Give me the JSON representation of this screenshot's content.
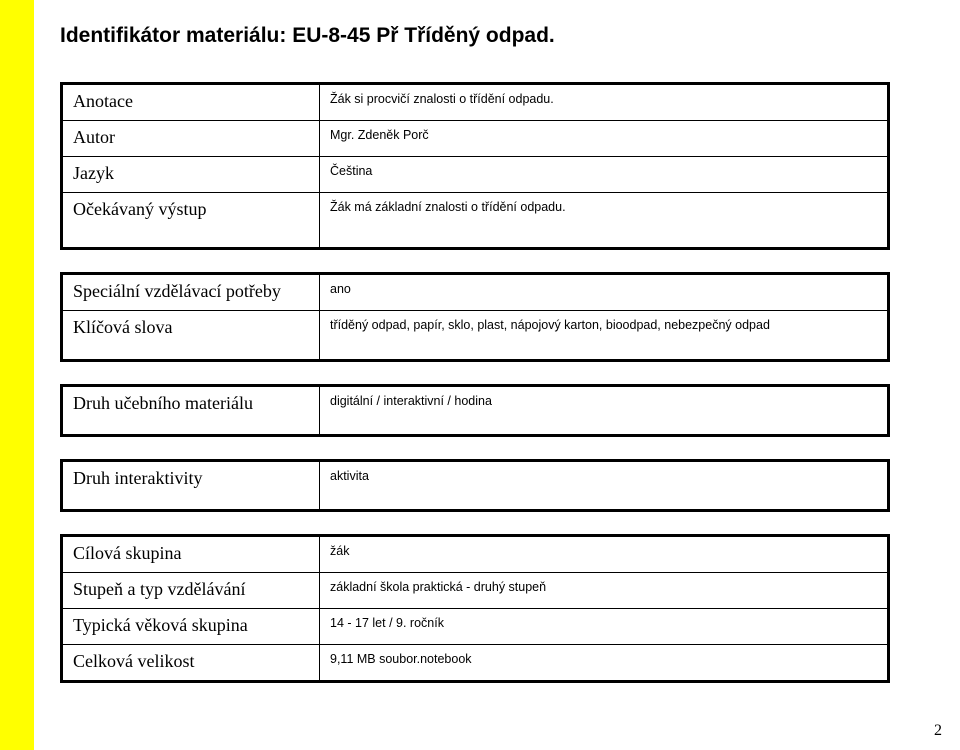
{
  "page": {
    "title": "Identifikátor materiálu: EU-8-45 Př Tříděný odpad.",
    "number": "2",
    "colors": {
      "stripe": "#ffff00",
      "background": "#ffffff",
      "border": "#000000",
      "text": "#000000"
    }
  },
  "block1": {
    "rows": [
      {
        "label": "Anotace",
        "value": "Žák si procvičí znalosti o třídění odpadu."
      },
      {
        "label": "Autor",
        "value": "Mgr. Zdeněk Porč"
      },
      {
        "label": "Jazyk",
        "value": "Čeština"
      },
      {
        "label": "Očekávaný výstup",
        "value": "Žák má základní znalosti o třídění odpadu."
      }
    ]
  },
  "block2": {
    "rows": [
      {
        "label": "Speciální vzdělávací potřeby",
        "value": "ano"
      },
      {
        "label": "Klíčová slova",
        "value": "tříděný odpad, papír, sklo, plast, nápojový karton, bioodpad, nebezpečný odpad"
      }
    ]
  },
  "block3": {
    "rows": [
      {
        "label": "Druh učebního materiálu",
        "value": "digitální / interaktivní / hodina"
      }
    ]
  },
  "block4": {
    "rows": [
      {
        "label": "Druh interaktivity",
        "value": "aktivita"
      }
    ]
  },
  "block5": {
    "rows": [
      {
        "label": "Cílová skupina",
        "value": "žák"
      },
      {
        "label": "Stupeň a typ vzdělávání",
        "value": "základní škola praktická - druhý stupeň"
      },
      {
        "label": "Typická věková skupina",
        "value": "14 - 17 let / 9. ročník"
      },
      {
        "label": "Celková velikost",
        "value": "9,11 MB  soubor.notebook"
      }
    ]
  }
}
